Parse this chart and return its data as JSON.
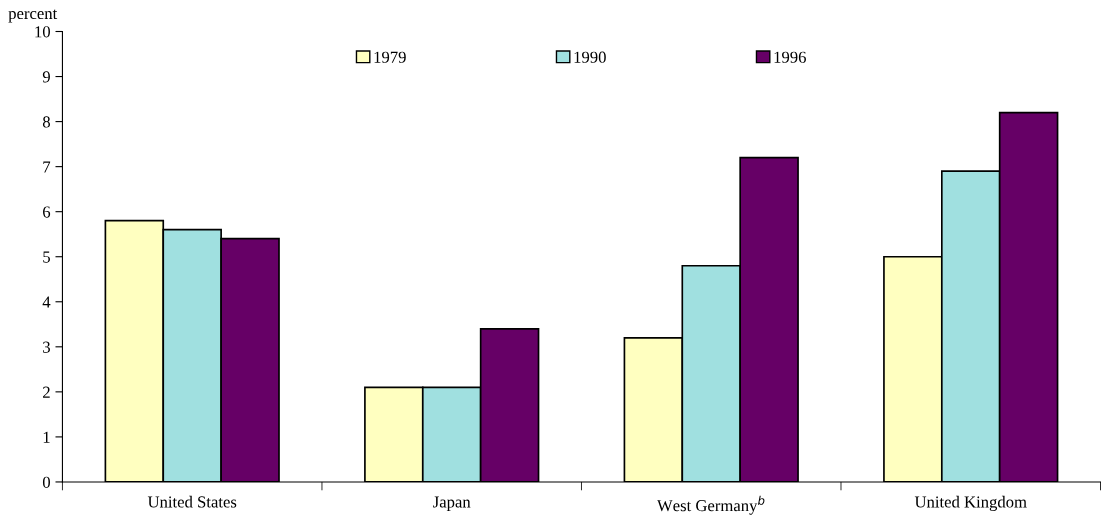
{
  "chart_data": {
    "type": "bar",
    "ylabel": "percent",
    "categories": [
      "United States",
      "Japan",
      "West Germany$^{b}$",
      "United Kingdom"
    ],
    "series": [
      {
        "name": "1979",
        "color": "#ffffc0",
        "values": [
          5.8,
          2.1,
          3.2,
          5.0
        ]
      },
      {
        "name": "1990",
        "color": "#a0e0e0",
        "values": [
          5.6,
          2.1,
          4.8,
          6.9
        ]
      },
      {
        "name": "1996",
        "color": "#660066",
        "values": [
          5.4,
          3.4,
          7.2,
          8.2
        ]
      }
    ],
    "ylim": [
      0,
      10
    ],
    "yticks": [
      0,
      1,
      2,
      3,
      4,
      5,
      6,
      7,
      8,
      9,
      10
    ],
    "grid": false,
    "legend": "top"
  }
}
